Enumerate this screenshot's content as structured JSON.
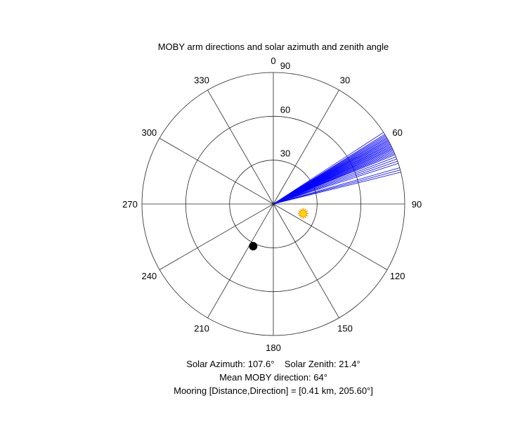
{
  "chart_data": {
    "type": "polar",
    "title": "MOBY arm directions and solar azimuth and zenith angle",
    "theta_zero": "top",
    "theta_direction": "clockwise",
    "r_max": 90,
    "radial_ticks": [
      30,
      60,
      90
    ],
    "radial_tick_labels": [
      "30",
      "60",
      "90"
    ],
    "angle_ticks": [
      0,
      30,
      60,
      90,
      120,
      150,
      180,
      210,
      240,
      270,
      300,
      330
    ],
    "angle_tick_labels": [
      "0",
      "30",
      "60",
      "90",
      "120",
      "150",
      "180",
      "210",
      "240",
      "270",
      "300",
      "330"
    ],
    "grid": true,
    "series": [
      {
        "kind": "arm_directions",
        "color": "#0000ff",
        "r": 90,
        "theta": [
          57,
          58,
          58.5,
          59,
          59.5,
          60,
          60.5,
          61,
          61,
          61.5,
          62,
          62,
          62.5,
          63,
          63,
          63.5,
          64,
          64,
          64.5,
          65,
          65,
          65.5,
          66,
          66.5,
          67,
          67.5,
          68,
          69,
          70,
          71,
          72,
          74,
          75,
          76
        ]
      },
      {
        "kind": "solar_position",
        "color": "#ffd700",
        "marker": "sun",
        "theta": 107.6,
        "r": 21.4
      },
      {
        "kind": "mooring_position",
        "color": "#000000",
        "marker": "filled-circle",
        "theta": 205.6,
        "r": 32
      }
    ],
    "annotations": [
      "Solar Azimuth: 107.6°    Solar Zenith: 21.4°",
      "Mean MOBY direction: 64°",
      "Mooring [Distance,Direction] = [0.41 km, 205.60°]"
    ]
  }
}
